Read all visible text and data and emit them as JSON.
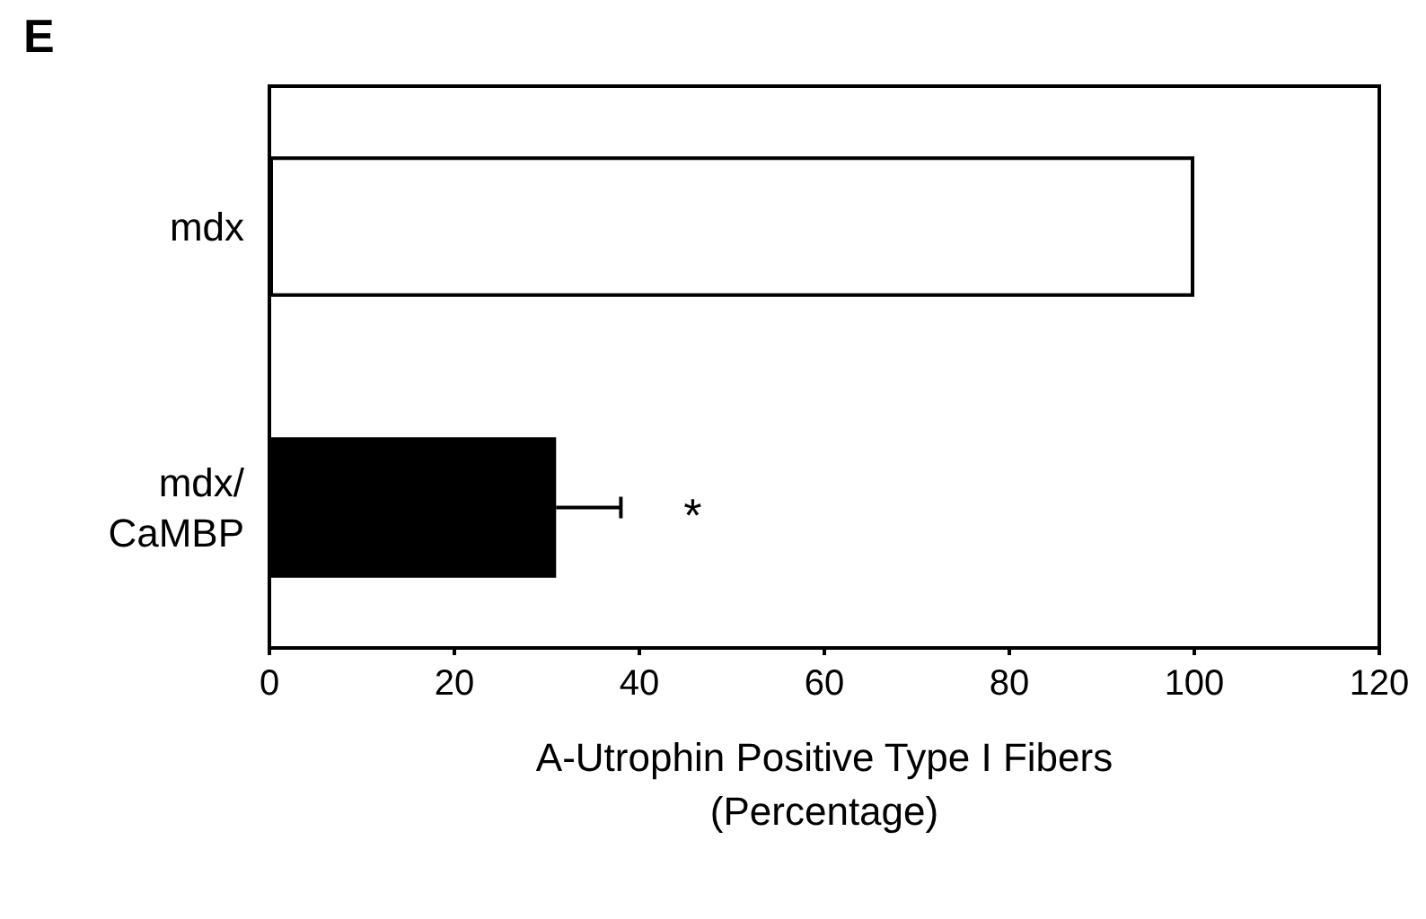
{
  "chart_data": {
    "type": "bar",
    "title": "E",
    "orientation": "horizontal",
    "categories": [
      "mdx",
      "mdx/CaMBP"
    ],
    "values": [
      100,
      31
    ],
    "colors": [
      "#ffffff",
      "#000000"
    ],
    "errors": [
      null,
      [
        31,
        38
      ]
    ],
    "xlim": [
      0,
      120
    ],
    "xticks": [
      0,
      20,
      40,
      60,
      80,
      100,
      120
    ],
    "xlabel": "A-Utrophin Positive Type I Fibers\n(Percentage)",
    "annotations": [
      "*"
    ],
    "grid": false
  }
}
